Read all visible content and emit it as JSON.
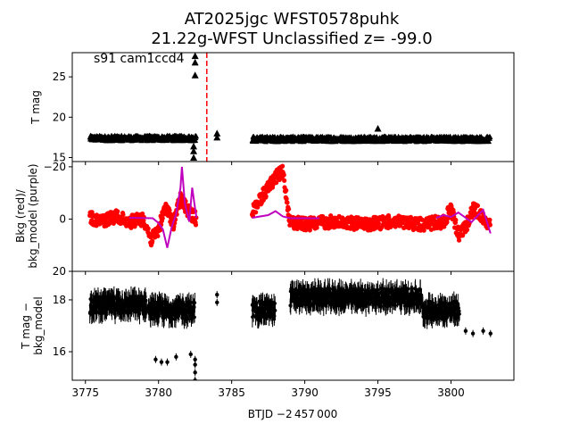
{
  "title_line1": "AT2025jgc  WFST0578puhk",
  "title_line2": "21.22g-WFST Unclassified z= -99.0",
  "panel_label": "s91 cam1ccd4",
  "xlabel": "BTJD −2 457 000",
  "colors": {
    "data": "#000000",
    "bkg": "#ff0000",
    "bkg_model": "#bf00bf",
    "marker_line": "#ff0000"
  },
  "chart_data": [
    {
      "type": "scatter",
      "panel": "top",
      "ylabel": "T mag",
      "ylim": [
        28,
        14.5
      ],
      "y_inverted": true,
      "xlim": [
        3774.1,
        3804.3
      ],
      "xticks": [
        3775,
        3780,
        3785,
        3790,
        3795,
        3800
      ],
      "xtick_labels": [
        "3775",
        "3780",
        "3785",
        "3790",
        "3795",
        "3800"
      ],
      "yticks": [
        15,
        20,
        25
      ],
      "ytick_labels": [
        "15",
        "20",
        "25"
      ],
      "vline_x": 3783.3,
      "segments": [
        {
          "x0": 3775.3,
          "x1": 3782.6,
          "y": 17.4
        },
        {
          "x0": 3786.4,
          "x1": 3802.7,
          "y": 17.3
        }
      ],
      "points": [
        [
          3782.4,
          15.0
        ],
        [
          3782.4,
          15.8
        ],
        [
          3782.4,
          16.4
        ],
        [
          3782.5,
          25.2
        ],
        [
          3782.5,
          26.8
        ],
        [
          3782.5,
          27.6
        ],
        [
          3784.0,
          17.5
        ],
        [
          3784.0,
          18.0
        ],
        [
          3795.0,
          18.6
        ]
      ]
    },
    {
      "type": "line",
      "panel": "middle",
      "ylabel": "Bkg (red)/\nbkg_model (purple)",
      "ylabel_lines": [
        "Bkg (red)/",
        "bkg_model (purple)"
      ],
      "ylim": [
        -22,
        20
      ],
      "yticks": [
        -20,
        0,
        20
      ],
      "ytick_labels": [
        "−20",
        "0",
        "20"
      ],
      "series": [
        {
          "name": "Bkg",
          "x": [
            3775.3,
            3776,
            3777,
            3778,
            3779,
            3779.5,
            3780,
            3780.5,
            3781,
            3781.5,
            3782,
            3782.6,
            3786.4,
            3787,
            3787.5,
            3788,
            3788.5,
            3789,
            3790,
            3792,
            3794,
            3796,
            3798,
            3799.5,
            3800,
            3800.5,
            3801,
            3801.5,
            3802,
            3802.7
          ],
          "y": [
            -1,
            1,
            -1,
            1,
            0,
            8,
            4,
            -5,
            2,
            -8,
            -3,
            0,
            -3,
            -8,
            -12,
            -16,
            -18,
            1,
            2,
            1,
            2,
            1,
            2,
            1,
            -4,
            6,
            3,
            -4,
            -2,
            3
          ]
        },
        {
          "name": "bkg_model",
          "x": [
            3775.3,
            3778,
            3779.6,
            3780.0,
            3780.3,
            3780.6,
            3780.9,
            3781.2,
            3781.5,
            3781.6,
            3781.8,
            3782.1,
            3782.3,
            3782.5,
            3782.6,
            3786.4,
            3787.5,
            3788.0,
            3788.5,
            3789.0,
            3791,
            3795,
            3799.0,
            3799.5,
            3800.0,
            3800.5,
            3801.0,
            3801.4,
            3801.8,
            3802.2,
            3802.7
          ],
          "y": [
            -0.5,
            -0.5,
            -0.3,
            1.5,
            4,
            11,
            3,
            -2,
            -12,
            -20,
            -6,
            1,
            -12,
            -4,
            -0.5,
            -0.5,
            -1.5,
            -3,
            -1,
            -0.3,
            -0.3,
            -0.3,
            -0.5,
            -1.5,
            -0.8,
            -2.5,
            -0.5,
            1.2,
            -1.2,
            -3.5,
            5.5
          ]
        }
      ]
    },
    {
      "type": "scatter",
      "panel": "bottom",
      "ylabel": "T mag −\nbkg_model",
      "ylabel_lines": [
        "T mag −",
        "bkg_model"
      ],
      "ylim": [
        19.1,
        14.9
      ],
      "y_inverted": true,
      "yticks": [
        16,
        18
      ],
      "ytick_labels": [
        "16",
        "18"
      ],
      "segments": [
        {
          "x0": 3775.3,
          "x1": 3779.2,
          "y": 17.8
        },
        {
          "x0": 3779.3,
          "x1": 3782.5,
          "y": 17.6
        },
        {
          "x0": 3786.4,
          "x1": 3788.0,
          "y": 17.6
        },
        {
          "x0": 3789.0,
          "x1": 3798.0,
          "y": 18.1
        },
        {
          "x0": 3798.0,
          "x1": 3800.6,
          "y": 17.6
        }
      ],
      "points": [
        [
          3779.8,
          15.7
        ],
        [
          3780.2,
          15.6
        ],
        [
          3780.6,
          15.6
        ],
        [
          3781.2,
          15.8
        ],
        [
          3782.2,
          15.9
        ],
        [
          3782.5,
          14.9
        ],
        [
          3782.5,
          15.2
        ],
        [
          3782.5,
          15.5
        ],
        [
          3782.5,
          15.7
        ],
        [
          3784.0,
          17.9
        ],
        [
          3784.0,
          18.2
        ],
        [
          3801.0,
          16.8
        ],
        [
          3801.5,
          16.7
        ],
        [
          3802.2,
          16.8
        ],
        [
          3802.7,
          16.7
        ]
      ]
    }
  ]
}
